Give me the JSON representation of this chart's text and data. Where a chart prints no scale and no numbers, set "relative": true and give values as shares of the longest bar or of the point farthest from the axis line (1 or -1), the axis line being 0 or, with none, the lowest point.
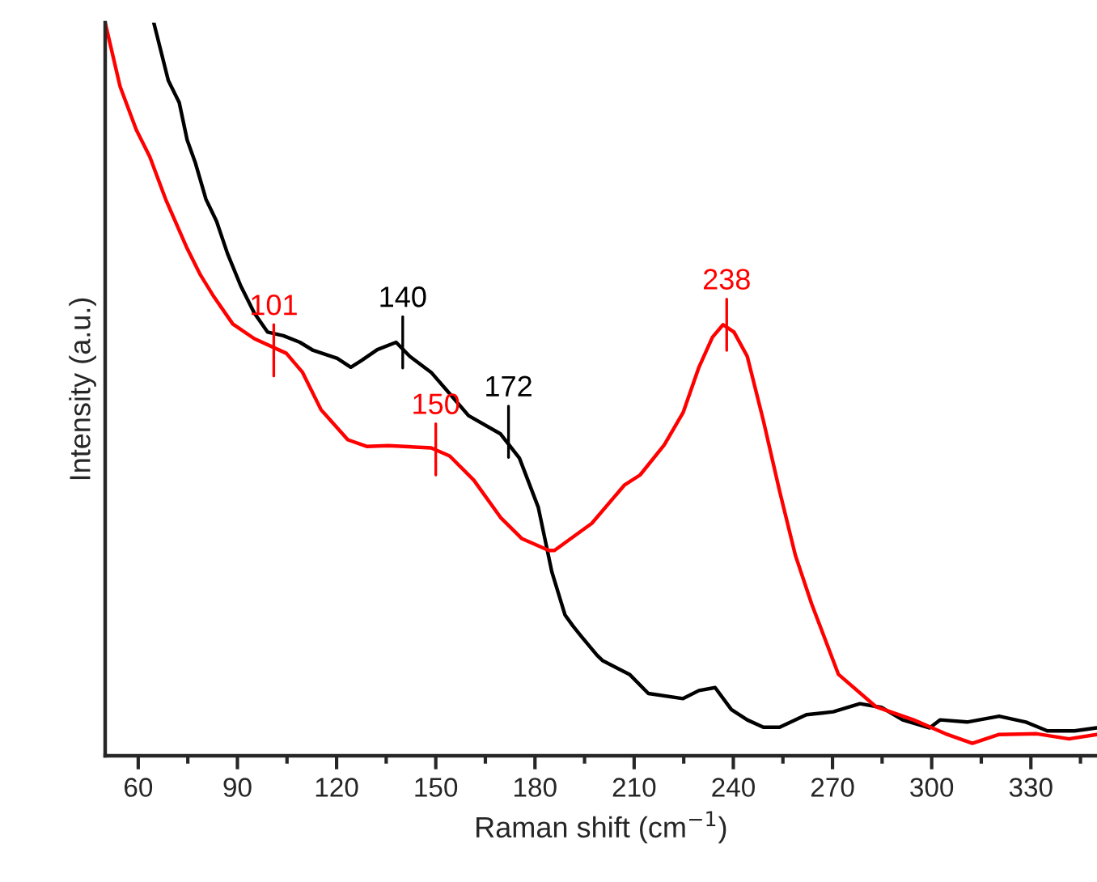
{
  "chart_data": {
    "type": "line",
    "relative": true,
    "xlabel": "Raman shift (cm$^{−1}$)",
    "ylabel": "Intensity (a.u.)",
    "xlim": [
      50,
      350
    ],
    "xticks": [
      60,
      {
        "value": 75,
        "label": null
      },
      90,
      {
        "value": 105,
        "label": null
      },
      120,
      {
        "value": 135,
        "label": null
      },
      150,
      {
        "value": 165,
        "label": null
      },
      180,
      {
        "value": 195,
        "label": null
      },
      210,
      {
        "value": 225,
        "label": null
      },
      240,
      {
        "value": 255,
        "label": null
      },
      270,
      {
        "value": 285,
        "label": null
      },
      300,
      {
        "value": 315,
        "label": null
      },
      330,
      {
        "value": 345,
        "label": null
      }
    ],
    "grid": false,
    "legend": false,
    "line_style": "solid",
    "series": [
      {
        "color": "#000000",
        "x": [
          64.7,
          69.1,
          72.4,
          74.8,
          77.2,
          80.5,
          83.7,
          87,
          91,
          95.1,
          99.1,
          103.9,
          108.9,
          112.9,
          120.2,
          124.3,
          127.5,
          132.3,
          138,
          142.1,
          148.6,
          154.2,
          159.9,
          169.6,
          175.3,
          181,
          185.1,
          189.1,
          191.5,
          194,
          198.8,
          200.4,
          208.6,
          214.3,
          224.8,
          229.6,
          234.5,
          239.4,
          244.2,
          249.1,
          254,
          262.1,
          270.2,
          278.3,
          284.8,
          291.2,
          299.4,
          302.6,
          310.7,
          320.4,
          328.5,
          335,
          343.2,
          349.9
        ],
        "values": [
          1.0,
          0.921,
          0.891,
          0.84,
          0.81,
          0.759,
          0.729,
          0.685,
          0.641,
          0.604,
          0.578,
          0.573,
          0.564,
          0.553,
          0.542,
          0.53,
          0.539,
          0.554,
          0.564,
          0.545,
          0.523,
          0.494,
          0.464,
          0.439,
          0.406,
          0.339,
          0.251,
          0.192,
          0.177,
          0.163,
          0.137,
          0.13,
          0.111,
          0.085,
          0.078,
          0.089,
          0.093,
          0.063,
          0.049,
          0.039,
          0.039,
          0.056,
          0.06,
          0.071,
          0.066,
          0.049,
          0.038,
          0.049,
          0.046,
          0.054,
          0.046,
          0.034,
          0.034,
          0.038
        ]
      },
      {
        "color": "#ff0000",
        "x": [
          50,
          54.5,
          59.4,
          63.5,
          68.3,
          74.8,
          78.8,
          82.9,
          88.6,
          95.1,
          104.8,
          109.7,
          115.3,
          123.4,
          129.1,
          135.6,
          148.6,
          154.2,
          161.5,
          169.6,
          176.1,
          184.2,
          185.9,
          197.2,
          207,
          211.8,
          219.1,
          224.8,
          229.6,
          233.7,
          236.9,
          240.2,
          244.2,
          249.1,
          254,
          258.8,
          263.7,
          271.8,
          283.1,
          294.5,
          304.2,
          312.3,
          320.4,
          331.8,
          341.5,
          349.9
        ],
        "values": [
          1.0,
          0.913,
          0.854,
          0.817,
          0.759,
          0.692,
          0.656,
          0.626,
          0.589,
          0.569,
          0.549,
          0.523,
          0.472,
          0.431,
          0.422,
          0.423,
          0.42,
          0.409,
          0.376,
          0.325,
          0.296,
          0.28,
          0.28,
          0.317,
          0.369,
          0.383,
          0.424,
          0.468,
          0.53,
          0.571,
          0.588,
          0.578,
          0.545,
          0.457,
          0.361,
          0.273,
          0.207,
          0.111,
          0.067,
          0.049,
          0.03,
          0.017,
          0.029,
          0.03,
          0.023,
          0.029
        ]
      }
    ],
    "annotations": [
      {
        "text": "101",
        "x": 101,
        "y": 0.553
      },
      {
        "text": "140",
        "x": 140,
        "y": 0.564
      },
      {
        "text": "150",
        "x": 150,
        "y": 0.418
      },
      {
        "text": "172",
        "x": 172,
        "y": 0.442
      },
      {
        "text": "238",
        "x": 238,
        "y": 0.588
      }
    ]
  }
}
